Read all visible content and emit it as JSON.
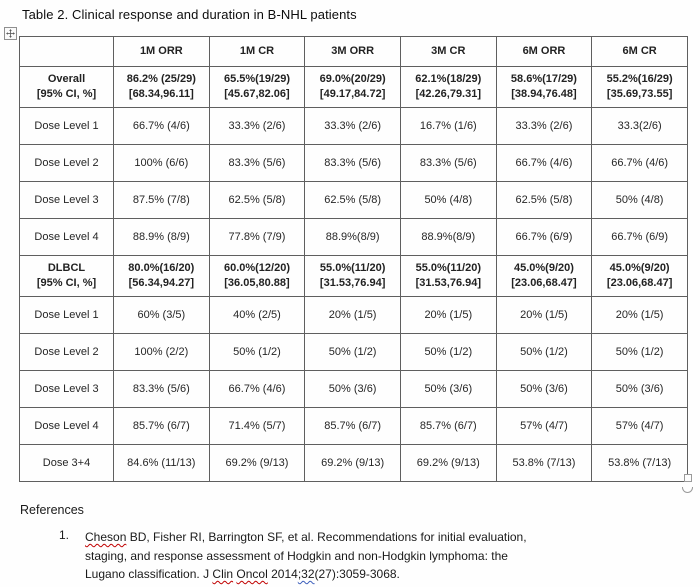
{
  "page": {
    "title": "Table 2. Clinical response and duration in B-NHL patients"
  },
  "colors": {
    "table_border": "#5f5f5f",
    "text": "#262626",
    "spellcheck_squiggle": "#c00000",
    "grammar_squiggle": "#3a5dbb",
    "background": "#fefefe"
  },
  "icons": {
    "table_move_handle": "move-cross-icon",
    "table_resize_handle": "square-handle-icon"
  },
  "table": {
    "columns": [
      "",
      "1M ORR",
      "1M CR",
      "3M ORR",
      "3M CR",
      "6M ORR",
      "6M CR"
    ],
    "rows": [
      {
        "label": "Overall\n[95% CI, %]",
        "emphasis": true,
        "cells": [
          "86.2% (25/29)\n[68.34,96.11]",
          "65.5%(19/29)\n[45.67,82.06]",
          "69.0%(20/29)\n[49.17,84.72]",
          "62.1%(18/29)\n[42.26,79.31]",
          "58.6%(17/29)\n[38.94,76.48]",
          "55.2%(16/29)\n[35.69,73.55]"
        ]
      },
      {
        "label": "Dose Level 1",
        "emphasis": false,
        "cells": [
          "66.7% (4/6)",
          "33.3% (2/6)",
          "33.3% (2/6)",
          "16.7% (1/6)",
          "33.3% (2/6)",
          "33.3(2/6)"
        ]
      },
      {
        "label": "Dose Level 2",
        "emphasis": false,
        "cells": [
          "100% (6/6)",
          "83.3% (5/6)",
          "83.3% (5/6)",
          "83.3% (5/6)",
          "66.7% (4/6)",
          "66.7% (4/6)"
        ]
      },
      {
        "label": "Dose Level 3",
        "emphasis": false,
        "cells": [
          "87.5% (7/8)",
          "62.5% (5/8)",
          "62.5% (5/8)",
          "50% (4/8)",
          "62.5% (5/8)",
          "50% (4/8)"
        ]
      },
      {
        "label": "Dose Level 4",
        "emphasis": false,
        "cells": [
          "88.9% (8/9)",
          "77.8% (7/9)",
          "88.9%(8/9)",
          "88.9%(8/9)",
          "66.7% (6/9)",
          "66.7% (6/9)"
        ]
      },
      {
        "label": "DLBCL\n[95% CI, %]",
        "emphasis": true,
        "cells": [
          "80.0%(16/20)\n[56.34,94.27]",
          "60.0%(12/20)\n[36.05,80.88]",
          "55.0%(11/20)\n[31.53,76.94]",
          "55.0%(11/20)\n[31.53,76.94]",
          "45.0%(9/20)\n[23.06,68.47]",
          "45.0%(9/20)\n[23.06,68.47]"
        ]
      },
      {
        "label": "Dose Level 1",
        "emphasis": false,
        "cells": [
          "60% (3/5)",
          "40% (2/5)",
          "20% (1/5)",
          "20% (1/5)",
          "20% (1/5)",
          "20% (1/5)"
        ]
      },
      {
        "label": "Dose Level 2",
        "emphasis": false,
        "cells": [
          "100% (2/2)",
          "50% (1/2)",
          "50% (1/2)",
          "50% (1/2)",
          "50% (1/2)",
          "50% (1/2)"
        ]
      },
      {
        "label": "Dose Level 3",
        "emphasis": false,
        "cells": [
          "83.3% (5/6)",
          "66.7% (4/6)",
          "50% (3/6)",
          "50% (3/6)",
          "50% (3/6)",
          "50% (3/6)"
        ]
      },
      {
        "label": "Dose Level 4",
        "emphasis": false,
        "cells": [
          "85.7% (6/7)",
          "71.4% (5/7)",
          "85.7% (6/7)",
          "85.7% (6/7)",
          "57% (4/7)",
          "57% (4/7)"
        ]
      },
      {
        "label": "Dose 3+4",
        "emphasis": false,
        "cells": [
          "84.6% (11/13)",
          "69.2% (9/13)",
          "69.2% (9/13)",
          "69.2% (9/13)",
          "53.8% (7/13)",
          "53.8% (7/13)"
        ]
      }
    ]
  },
  "references": {
    "heading": "References",
    "items": [
      {
        "number": "1.",
        "segments": [
          {
            "text": "Cheson",
            "underline": "red"
          },
          {
            "text": " BD, Fisher RI, Barrington SF, et al. Recommendations for initial evaluation, staging, and response assessment of Hodgkin and non-Hodgkin lymphoma: the Lugano classification. J ",
            "underline": "none"
          },
          {
            "text": "Clin",
            "underline": "red"
          },
          {
            "text": " ",
            "underline": "none"
          },
          {
            "text": "Oncol",
            "underline": "red"
          },
          {
            "text": " 2014",
            "underline": "none"
          },
          {
            "text": ";32",
            "underline": "blue"
          },
          {
            "text": "(27):3059-3068.",
            "underline": "none"
          }
        ]
      }
    ]
  }
}
